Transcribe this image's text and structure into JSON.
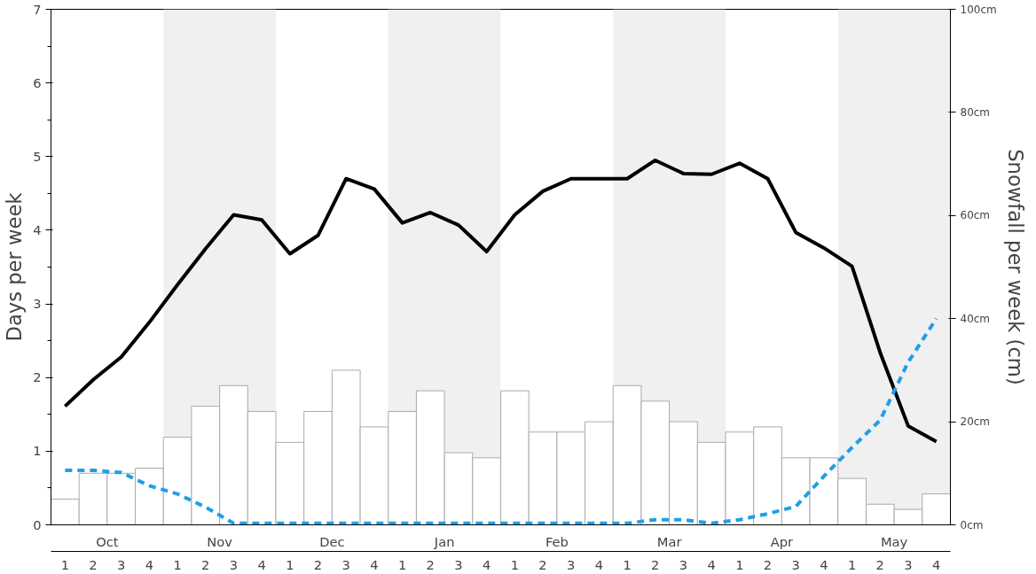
{
  "chart_data": {
    "type": "line",
    "ylabel": "Days per week",
    "y2label": "Snowfall per week (cm)",
    "ylim": [
      0,
      7
    ],
    "yticks": [
      0,
      1,
      2,
      3,
      4,
      5,
      6,
      7
    ],
    "y2lim": [
      0,
      100
    ],
    "y2ticks": [
      {
        "value": 0,
        "label": "0cm"
      },
      {
        "value": 20,
        "label": "20cm"
      },
      {
        "value": 40,
        "label": "40cm"
      },
      {
        "value": 60,
        "label": "60cm"
      },
      {
        "value": 80,
        "label": "80cm"
      },
      {
        "value": 100,
        "label": "100cm"
      }
    ],
    "categories": [
      "1",
      "2",
      "3",
      "4",
      "1",
      "2",
      "3",
      "4",
      "1",
      "2",
      "3",
      "4",
      "1",
      "2",
      "3",
      "4",
      "1",
      "2",
      "3",
      "4",
      "1",
      "2",
      "3",
      "4",
      "1",
      "2",
      "3",
      "4",
      "1",
      "2",
      "3",
      "4"
    ],
    "annotations": [
      "Oct",
      "Nov",
      "Dec",
      "Jan",
      "Feb",
      "Mar",
      "Apr",
      "May"
    ],
    "grid": false,
    "series": [
      {
        "type": "bar",
        "axis": "y2",
        "color": "#ffffff",
        "values": [
          5,
          10,
          10,
          11,
          17,
          23,
          27,
          22,
          16,
          22,
          30,
          19,
          22,
          26,
          14,
          13,
          26,
          18,
          18,
          20,
          27,
          24,
          20,
          16,
          18,
          19,
          13,
          13,
          9,
          4,
          3,
          6
        ]
      },
      {
        "color": "#000000",
        "line_style": "solid",
        "values": [
          1.61,
          1.97,
          2.28,
          2.75,
          3.26,
          3.75,
          4.21,
          4.14,
          3.68,
          3.93,
          4.7,
          4.56,
          4.1,
          4.24,
          4.07,
          3.71,
          4.21,
          4.53,
          4.7,
          4.7,
          4.7,
          4.95,
          4.77,
          4.76,
          4.91,
          4.7,
          3.97,
          3.76,
          3.51,
          2.34,
          1.34,
          1.13
        ]
      },
      {
        "color": "#1e9fe6",
        "line_style": "dashed",
        "values": [
          0.74,
          0.74,
          0.71,
          0.53,
          0.42,
          0.24,
          0.02,
          0.02,
          0.02,
          0.02,
          0.02,
          0.02,
          0.02,
          0.02,
          0.02,
          0.02,
          0.02,
          0.02,
          0.02,
          0.02,
          0.02,
          0.07,
          0.07,
          0.02,
          0.07,
          0.15,
          0.25,
          0.66,
          1.05,
          1.42,
          2.21,
          2.8
        ]
      }
    ]
  }
}
